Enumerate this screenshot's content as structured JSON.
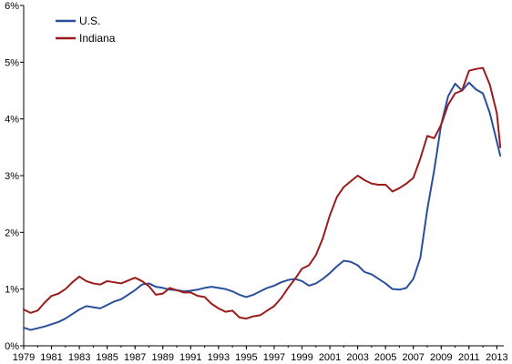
{
  "chart_data": {
    "type": "line",
    "title": "",
    "xlabel": "",
    "ylabel": "",
    "xlim": [
      1979,
      2013.5
    ],
    "ylim": [
      0,
      6
    ],
    "grid": false,
    "legend_position": "top-left",
    "x_ticks": [
      {
        "value": 1979,
        "label": "1979"
      },
      {
        "value": 1981,
        "label": "1981"
      },
      {
        "value": 1983,
        "label": "1983"
      },
      {
        "value": 1985,
        "label": "1985"
      },
      {
        "value": 1987,
        "label": "1987"
      },
      {
        "value": 1989,
        "label": "1989"
      },
      {
        "value": 1991,
        "label": "1991"
      },
      {
        "value": 1993,
        "label": "1993"
      },
      {
        "value": 1995,
        "label": "1995"
      },
      {
        "value": 1997,
        "label": "1997"
      },
      {
        "value": 1999,
        "label": "1999"
      },
      {
        "value": 2001,
        "label": "2001"
      },
      {
        "value": 2003,
        "label": "2003"
      },
      {
        "value": 2005,
        "label": "2005"
      },
      {
        "value": 2007,
        "label": "2007"
      },
      {
        "value": 2009,
        "label": "2009"
      },
      {
        "value": 2011,
        "label": "2011"
      },
      {
        "value": 2013,
        "label": "2013"
      }
    ],
    "y_ticks": [
      {
        "value": 0,
        "label": "0%"
      },
      {
        "value": 1,
        "label": "1%"
      },
      {
        "value": 2,
        "label": "2%"
      },
      {
        "value": 3,
        "label": "3%"
      },
      {
        "value": 4,
        "label": "4%"
      },
      {
        "value": 5,
        "label": "5%"
      },
      {
        "value": 6,
        "label": "6%"
      }
    ],
    "series": [
      {
        "name": "U.S.",
        "color": "#2a4f9a",
        "points": [
          [
            1979.0,
            0.32
          ],
          [
            1979.5,
            0.28
          ],
          [
            1980.0,
            0.31
          ],
          [
            1980.5,
            0.34
          ],
          [
            1981.0,
            0.38
          ],
          [
            1981.5,
            0.42
          ],
          [
            1982.0,
            0.48
          ],
          [
            1982.5,
            0.56
          ],
          [
            1983.0,
            0.64
          ],
          [
            1983.5,
            0.7
          ],
          [
            1984.0,
            0.68
          ],
          [
            1984.5,
            0.66
          ],
          [
            1985.0,
            0.72
          ],
          [
            1985.5,
            0.78
          ],
          [
            1986.0,
            0.82
          ],
          [
            1986.5,
            0.9
          ],
          [
            1987.0,
            0.98
          ],
          [
            1987.5,
            1.08
          ],
          [
            1988.0,
            1.1
          ],
          [
            1988.5,
            1.04
          ],
          [
            1989.0,
            1.02
          ],
          [
            1989.5,
            0.99
          ],
          [
            1990.0,
            0.98
          ],
          [
            1990.5,
            0.96
          ],
          [
            1991.0,
            0.97
          ],
          [
            1991.5,
            0.99
          ],
          [
            1992.0,
            1.02
          ],
          [
            1992.5,
            1.04
          ],
          [
            1993.0,
            1.02
          ],
          [
            1993.5,
            1.0
          ],
          [
            1994.0,
            0.96
          ],
          [
            1994.5,
            0.9
          ],
          [
            1995.0,
            0.86
          ],
          [
            1995.5,
            0.9
          ],
          [
            1996.0,
            0.96
          ],
          [
            1996.5,
            1.02
          ],
          [
            1997.0,
            1.06
          ],
          [
            1997.5,
            1.12
          ],
          [
            1998.0,
            1.16
          ],
          [
            1998.5,
            1.18
          ],
          [
            1999.0,
            1.14
          ],
          [
            1999.5,
            1.06
          ],
          [
            2000.0,
            1.1
          ],
          [
            2000.5,
            1.18
          ],
          [
            2001.0,
            1.28
          ],
          [
            2001.5,
            1.4
          ],
          [
            2002.0,
            1.5
          ],
          [
            2002.5,
            1.48
          ],
          [
            2003.0,
            1.42
          ],
          [
            2003.5,
            1.3
          ],
          [
            2004.0,
            1.26
          ],
          [
            2004.5,
            1.18
          ],
          [
            2005.0,
            1.1
          ],
          [
            2005.5,
            1.0
          ],
          [
            2006.0,
            0.99
          ],
          [
            2006.5,
            1.02
          ],
          [
            2007.0,
            1.18
          ],
          [
            2007.5,
            1.55
          ],
          [
            2008.0,
            2.4
          ],
          [
            2008.5,
            3.1
          ],
          [
            2009.0,
            3.9
          ],
          [
            2009.5,
            4.4
          ],
          [
            2010.0,
            4.62
          ],
          [
            2010.5,
            4.5
          ],
          [
            2011.0,
            4.64
          ],
          [
            2011.5,
            4.52
          ],
          [
            2012.0,
            4.45
          ],
          [
            2012.5,
            4.1
          ],
          [
            2013.0,
            3.6
          ],
          [
            2013.25,
            3.35
          ]
        ]
      },
      {
        "name": "Indiana",
        "color": "#9b1b1b",
        "points": [
          [
            1979.0,
            0.64
          ],
          [
            1979.5,
            0.58
          ],
          [
            1980.0,
            0.62
          ],
          [
            1980.5,
            0.76
          ],
          [
            1981.0,
            0.88
          ],
          [
            1981.5,
            0.92
          ],
          [
            1982.0,
            1.0
          ],
          [
            1982.5,
            1.12
          ],
          [
            1983.0,
            1.22
          ],
          [
            1983.5,
            1.14
          ],
          [
            1984.0,
            1.1
          ],
          [
            1984.5,
            1.08
          ],
          [
            1985.0,
            1.14
          ],
          [
            1985.5,
            1.12
          ],
          [
            1986.0,
            1.1
          ],
          [
            1986.5,
            1.15
          ],
          [
            1987.0,
            1.2
          ],
          [
            1987.5,
            1.14
          ],
          [
            1988.0,
            1.05
          ],
          [
            1988.5,
            0.9
          ],
          [
            1989.0,
            0.92
          ],
          [
            1989.5,
            1.02
          ],
          [
            1990.0,
            0.98
          ],
          [
            1990.5,
            0.94
          ],
          [
            1991.0,
            0.94
          ],
          [
            1991.5,
            0.88
          ],
          [
            1992.0,
            0.86
          ],
          [
            1992.5,
            0.74
          ],
          [
            1993.0,
            0.66
          ],
          [
            1993.5,
            0.6
          ],
          [
            1994.0,
            0.62
          ],
          [
            1994.5,
            0.5
          ],
          [
            1995.0,
            0.48
          ],
          [
            1995.5,
            0.52
          ],
          [
            1996.0,
            0.54
          ],
          [
            1996.5,
            0.62
          ],
          [
            1997.0,
            0.7
          ],
          [
            1997.5,
            0.84
          ],
          [
            1998.0,
            1.02
          ],
          [
            1998.5,
            1.18
          ],
          [
            1999.0,
            1.36
          ],
          [
            1999.5,
            1.42
          ],
          [
            2000.0,
            1.6
          ],
          [
            2000.5,
            1.9
          ],
          [
            2001.0,
            2.3
          ],
          [
            2001.5,
            2.62
          ],
          [
            2002.0,
            2.8
          ],
          [
            2002.5,
            2.9
          ],
          [
            2003.0,
            3.0
          ],
          [
            2003.5,
            2.92
          ],
          [
            2004.0,
            2.86
          ],
          [
            2004.5,
            2.84
          ],
          [
            2005.0,
            2.84
          ],
          [
            2005.5,
            2.72
          ],
          [
            2006.0,
            2.78
          ],
          [
            2006.5,
            2.86
          ],
          [
            2007.0,
            2.96
          ],
          [
            2007.5,
            3.3
          ],
          [
            2008.0,
            3.7
          ],
          [
            2008.5,
            3.66
          ],
          [
            2009.0,
            3.9
          ],
          [
            2009.5,
            4.25
          ],
          [
            2010.0,
            4.45
          ],
          [
            2010.5,
            4.5
          ],
          [
            2011.0,
            4.85
          ],
          [
            2011.5,
            4.88
          ],
          [
            2012.0,
            4.9
          ],
          [
            2012.5,
            4.6
          ],
          [
            2013.0,
            4.1
          ],
          [
            2013.25,
            3.5
          ]
        ]
      }
    ]
  }
}
